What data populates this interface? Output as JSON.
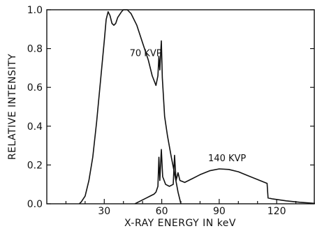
{
  "chart_data": {
    "type": "line",
    "xlabel": "X-RAY ENERGY IN keV",
    "ylabel": "RELATIVE INTENSITY",
    "xlim": [
      0,
      140
    ],
    "ylim": [
      0,
      1.0
    ],
    "xticks": [
      30,
      60,
      90,
      120
    ],
    "yticks": [
      "0.0",
      "0.2",
      "0.4",
      "0.6",
      "0.8",
      "1.0"
    ],
    "grid": false,
    "series": [
      {
        "name": "70 KVP",
        "label_at": [
          60,
          0.76
        ],
        "points": [
          [
            17,
            0
          ],
          [
            18,
            0.01
          ],
          [
            20,
            0.04
          ],
          [
            22,
            0.12
          ],
          [
            24,
            0.24
          ],
          [
            26,
            0.42
          ],
          [
            28,
            0.63
          ],
          [
            30,
            0.84
          ],
          [
            31,
            0.95
          ],
          [
            32,
            0.99
          ],
          [
            33,
            0.97
          ],
          [
            34,
            0.93
          ],
          [
            35,
            0.92
          ],
          [
            36,
            0.93
          ],
          [
            37,
            0.96
          ],
          [
            39,
            0.99
          ],
          [
            40,
            1.0
          ],
          [
            42,
            1.0
          ],
          [
            44,
            0.98
          ],
          [
            47,
            0.92
          ],
          [
            50,
            0.83
          ],
          [
            53,
            0.74
          ],
          [
            55,
            0.66
          ],
          [
            57,
            0.61
          ],
          [
            58,
            0.66
          ],
          [
            58.5,
            0.76
          ],
          [
            59,
            0.69
          ],
          [
            59.8,
            0.84
          ],
          [
            60.3,
            0.65
          ],
          [
            61.5,
            0.45
          ],
          [
            63,
            0.35
          ],
          [
            65,
            0.24
          ],
          [
            67,
            0.14
          ],
          [
            68.5,
            0.06
          ],
          [
            70,
            0
          ]
        ]
      },
      {
        "name": "140 KVP",
        "label_at": [
          104,
          0.22
        ],
        "points": [
          [
            46,
            0
          ],
          [
            48,
            0.01
          ],
          [
            50,
            0.02
          ],
          [
            52,
            0.03
          ],
          [
            54,
            0.04
          ],
          [
            56,
            0.05
          ],
          [
            57,
            0.06
          ],
          [
            58,
            0.09
          ],
          [
            58.5,
            0.24
          ],
          [
            59,
            0.12
          ],
          [
            59.8,
            0.28
          ],
          [
            60.5,
            0.14
          ],
          [
            62,
            0.1
          ],
          [
            64,
            0.09
          ],
          [
            66,
            0.1
          ],
          [
            66.7,
            0.25
          ],
          [
            67.5,
            0.12
          ],
          [
            68.5,
            0.16
          ],
          [
            69.5,
            0.12
          ],
          [
            72,
            0.11
          ],
          [
            76,
            0.13
          ],
          [
            80,
            0.15
          ],
          [
            85,
            0.17
          ],
          [
            90,
            0.18
          ],
          [
            95,
            0.177
          ],
          [
            100,
            0.165
          ],
          [
            105,
            0.145
          ],
          [
            110,
            0.125
          ],
          [
            115,
            0.105
          ],
          [
            115.5,
            0.03
          ],
          [
            118,
            0.025
          ],
          [
            125,
            0.015
          ],
          [
            132,
            0.008
          ],
          [
            140,
            0.002
          ]
        ]
      }
    ]
  }
}
